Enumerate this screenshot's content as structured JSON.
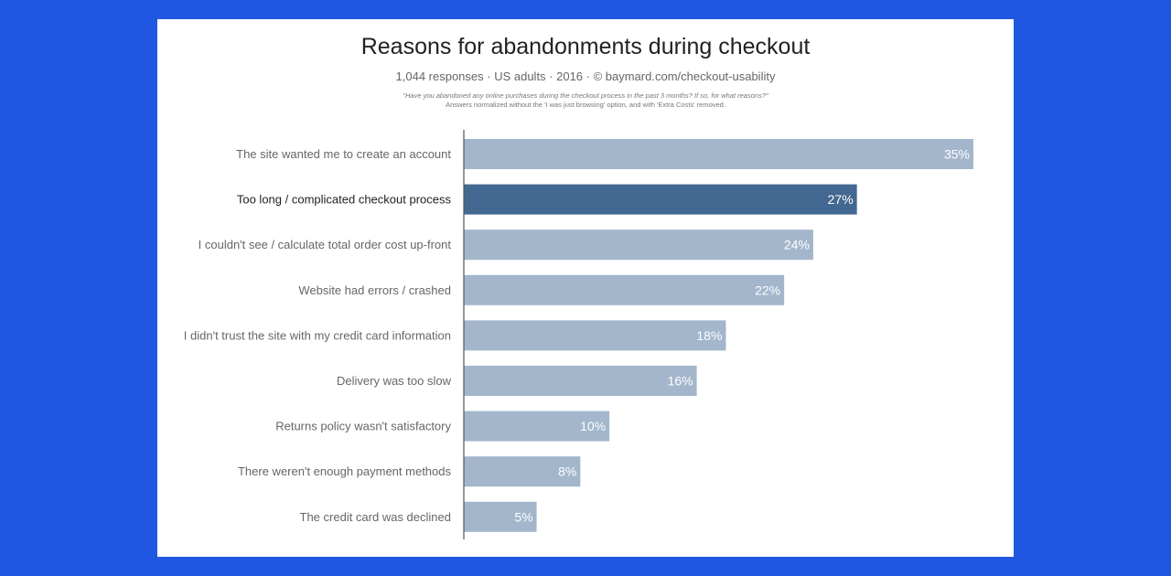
{
  "colors": {
    "background": "#1f57e3",
    "card": "#ffffff",
    "bar": "#a3b6cc",
    "bar_highlight": "#436891",
    "axis": "#555555"
  },
  "chart_data": {
    "type": "bar",
    "orientation": "horizontal",
    "title": "Reasons for abandonments during checkout",
    "subtitle": "1,044 responses · US adults · 2016 · © baymard.com/checkout-usability",
    "note_question": "\"Have you abandoned any online purchases during the checkout process in the past 3 months? If so, for what reasons?\"",
    "note_normalized": "Answers normalized without the 'I was just browsing' option, and with 'Extra Costs' removed.",
    "categories": [
      "The site wanted me to create an account",
      "Too long / complicated checkout process",
      "I couldn't see / calculate total order cost up-front",
      "Website had errors / crashed",
      "I didn't trust the site with my credit card information",
      "Delivery was too slow",
      "Returns policy wasn't satisfactory",
      "There weren't enough payment methods",
      "The credit card was declined"
    ],
    "values": [
      35,
      27,
      24,
      22,
      18,
      16,
      10,
      8,
      5
    ],
    "value_labels": [
      "35%",
      "27%",
      "24%",
      "22%",
      "18%",
      "16%",
      "10%",
      "8%",
      "5%"
    ],
    "highlight_index": 1,
    "xlim": [
      0,
      35
    ],
    "grid": false,
    "legend": "none"
  }
}
